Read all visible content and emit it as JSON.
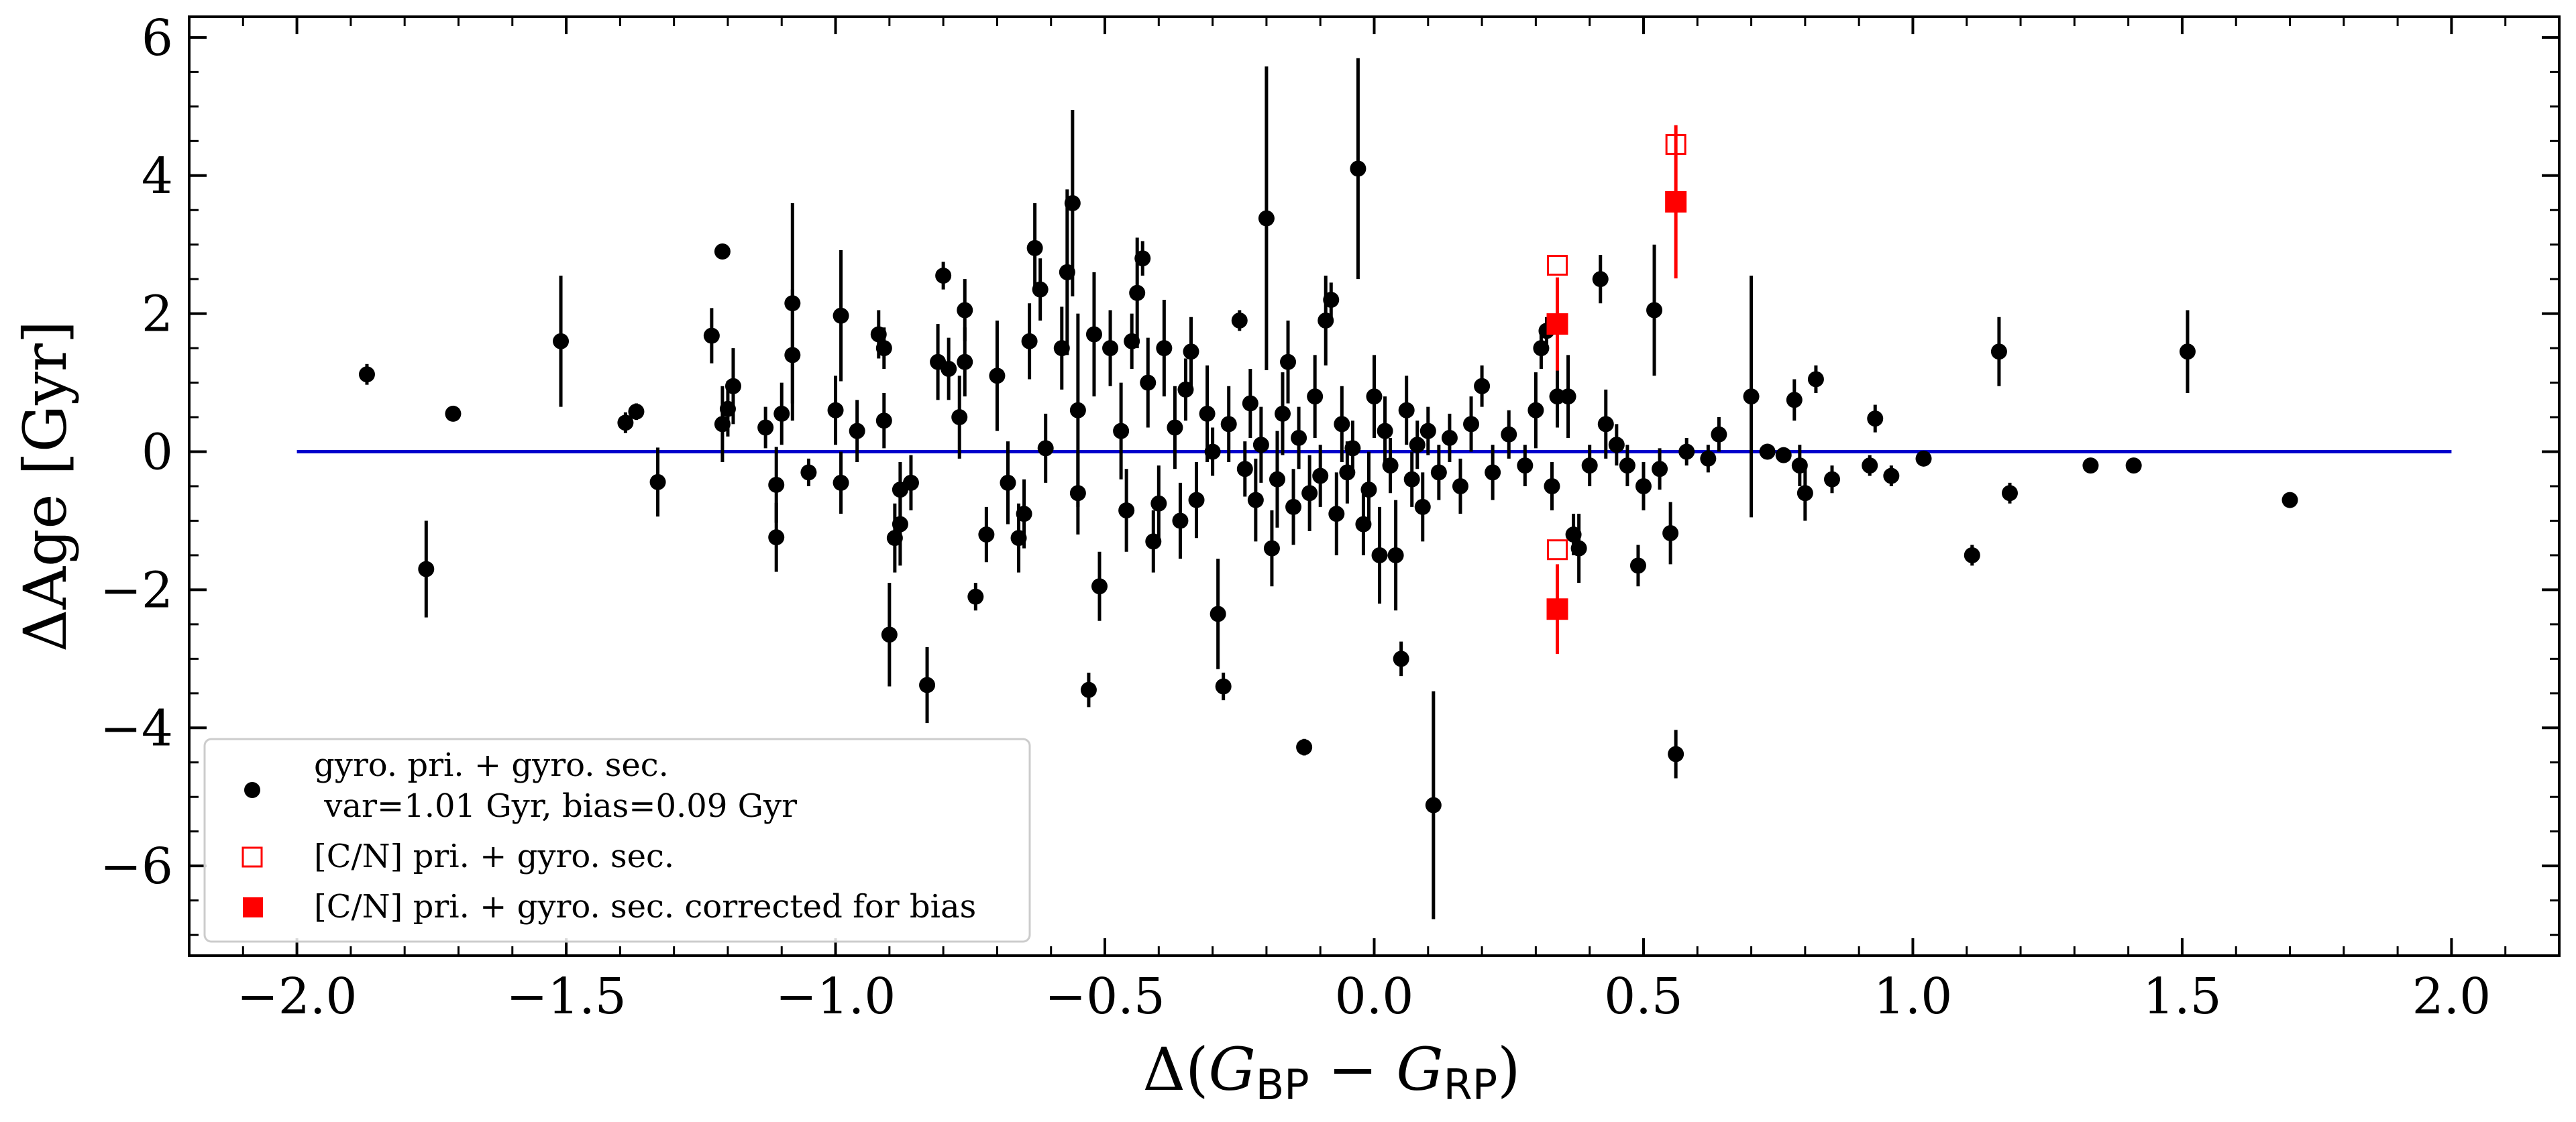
{
  "chart_data": {
    "type": "scatter",
    "ylabel": "ΔAge [Gyr]",
    "xlabel": {
      "prefix": "Δ(",
      "g": "G",
      "sub1": "BP",
      "minus": " − ",
      "sub2": "RP",
      "suffix": ")"
    },
    "xlim": [
      -2.2,
      2.2
    ],
    "ylim": [
      -7.3,
      6.3
    ],
    "xticks": [
      -2.0,
      -1.5,
      -1.0,
      -0.5,
      0.0,
      0.5,
      1.0,
      1.5,
      2.0
    ],
    "xtick_labels": [
      "−2.0",
      "−1.5",
      "−1.0",
      "−0.5",
      "0.0",
      "0.5",
      "1.0",
      "1.5",
      "2.0"
    ],
    "yticks": [
      -6,
      -4,
      -2,
      0,
      2,
      4,
      6
    ],
    "ytick_labels": [
      "−6",
      "−4",
      "−2",
      "0",
      "2",
      "4",
      "6"
    ],
    "grid": false,
    "legend_placement": "lower-left",
    "colors": {
      "gyro": "#000000",
      "cn": "#ff0000",
      "line": "#0000cc"
    },
    "reference_line": {
      "x": [
        -2.0,
        2.0
      ],
      "y": 0
    },
    "series": [
      {
        "name": "gyro. pri. + gyro. sec.",
        "name_line2": " var=1.01 Gyr, bias=0.09 Gyr",
        "marker": "circle",
        "points": [
          [
            -1.87,
            1.12,
            0.15
          ],
          [
            -1.76,
            -1.7,
            0.7
          ],
          [
            -1.71,
            0.55,
            0.1
          ],
          [
            -1.51,
            1.6,
            0.95
          ],
          [
            -1.39,
            0.42,
            0.15
          ],
          [
            -1.37,
            0.58,
            0.12
          ],
          [
            -1.33,
            -0.44,
            0.5
          ],
          [
            -1.23,
            1.68,
            0.4
          ],
          [
            -1.21,
            2.9,
            0.1
          ],
          [
            -1.21,
            0.4,
            0.55
          ],
          [
            -1.2,
            0.62,
            0.4
          ],
          [
            -1.19,
            0.95,
            0.55
          ],
          [
            -1.13,
            0.35,
            0.3
          ],
          [
            -1.11,
            -1.24,
            0.5
          ],
          [
            -1.11,
            -0.48,
            0.55
          ],
          [
            -1.1,
            0.55,
            0.45
          ],
          [
            -1.08,
            2.15,
            1.45
          ],
          [
            -1.08,
            1.4,
            0.95
          ],
          [
            -1.05,
            -0.3,
            0.2
          ],
          [
            -1.0,
            0.6,
            0.5
          ],
          [
            -0.99,
            -0.45,
            0.45
          ],
          [
            -0.99,
            1.97,
            0.95
          ],
          [
            -0.96,
            0.3,
            0.45
          ],
          [
            -0.92,
            1.7,
            0.35
          ],
          [
            -0.91,
            1.5,
            0.3
          ],
          [
            -0.91,
            0.45,
            0.4
          ],
          [
            -0.9,
            -2.65,
            0.75
          ],
          [
            -0.89,
            -1.25,
            0.5
          ],
          [
            -0.88,
            -1.05,
            0.6
          ],
          [
            -0.88,
            -0.55,
            0.4
          ],
          [
            -0.86,
            -0.45,
            0.4
          ],
          [
            -0.83,
            -3.38,
            0.55
          ],
          [
            -0.81,
            1.3,
            0.55
          ],
          [
            -0.8,
            2.55,
            0.2
          ],
          [
            -0.79,
            1.2,
            0.45
          ],
          [
            -0.77,
            0.5,
            0.6
          ],
          [
            -0.76,
            1.3,
            0.5
          ],
          [
            -0.76,
            2.05,
            0.45
          ],
          [
            -0.74,
            -2.1,
            0.2
          ],
          [
            -0.72,
            -1.2,
            0.4
          ],
          [
            -0.7,
            1.1,
            0.8
          ],
          [
            -0.68,
            -0.45,
            0.6
          ],
          [
            -0.66,
            -1.25,
            0.5
          ],
          [
            -0.65,
            -0.9,
            0.5
          ],
          [
            -0.64,
            1.6,
            0.55
          ],
          [
            -0.63,
            2.95,
            0.65
          ],
          [
            -0.62,
            2.35,
            0.45
          ],
          [
            -0.61,
            0.05,
            0.5
          ],
          [
            -0.58,
            1.5,
            0.6
          ],
          [
            -0.57,
            2.6,
            1.2
          ],
          [
            -0.56,
            3.6,
            1.35
          ],
          [
            -0.55,
            -0.6,
            0.6
          ],
          [
            -0.55,
            0.6,
            1.4
          ],
          [
            -0.53,
            -3.45,
            0.25
          ],
          [
            -0.52,
            1.7,
            0.9
          ],
          [
            -0.51,
            -1.95,
            0.5
          ],
          [
            -0.49,
            1.5,
            0.55
          ],
          [
            -0.47,
            0.3,
            0.7
          ],
          [
            -0.46,
            -0.85,
            0.6
          ],
          [
            -0.45,
            1.6,
            0.4
          ],
          [
            -0.44,
            2.3,
            0.8
          ],
          [
            -0.43,
            2.8,
            0.25
          ],
          [
            -0.42,
            1.0,
            0.65
          ],
          [
            -0.41,
            -1.3,
            0.45
          ],
          [
            -0.4,
            -0.75,
            0.55
          ],
          [
            -0.39,
            1.5,
            0.7
          ],
          [
            -0.37,
            0.35,
            0.6
          ],
          [
            -0.36,
            -1.0,
            0.55
          ],
          [
            -0.35,
            0.9,
            0.45
          ],
          [
            -0.34,
            1.45,
            0.5
          ],
          [
            -0.33,
            -0.7,
            0.55
          ],
          [
            -0.31,
            0.55,
            0.7
          ],
          [
            -0.3,
            0.0,
            0.35
          ],
          [
            -0.29,
            -2.35,
            0.8
          ],
          [
            -0.28,
            -3.4,
            0.2
          ],
          [
            -0.27,
            0.4,
            0.55
          ],
          [
            -0.25,
            1.9,
            0.15
          ],
          [
            -0.24,
            -0.25,
            0.4
          ],
          [
            -0.23,
            0.7,
            0.5
          ],
          [
            -0.22,
            -0.7,
            0.6
          ],
          [
            -0.21,
            0.1,
            0.55
          ],
          [
            -0.2,
            3.38,
            2.2
          ],
          [
            -0.19,
            -1.4,
            0.55
          ],
          [
            -0.18,
            -0.4,
            0.7
          ],
          [
            -0.17,
            0.55,
            0.6
          ],
          [
            -0.16,
            1.3,
            0.6
          ],
          [
            -0.15,
            -0.8,
            0.55
          ],
          [
            -0.14,
            0.2,
            0.45
          ],
          [
            -0.13,
            -4.28,
            0.12
          ],
          [
            -0.12,
            -0.6,
            0.55
          ],
          [
            -0.11,
            0.8,
            0.6
          ],
          [
            -0.1,
            -0.35,
            0.45
          ],
          [
            -0.09,
            1.9,
            0.65
          ],
          [
            -0.08,
            2.2,
            0.25
          ],
          [
            -0.07,
            -0.9,
            0.6
          ],
          [
            -0.06,
            0.4,
            0.55
          ],
          [
            -0.05,
            -0.3,
            0.45
          ],
          [
            -0.04,
            0.05,
            0.4
          ],
          [
            -0.03,
            4.1,
            1.6
          ],
          [
            -0.02,
            -1.05,
            0.45
          ],
          [
            -0.01,
            -0.55,
            0.55
          ],
          [
            0.0,
            0.8,
            0.6
          ],
          [
            0.01,
            -1.5,
            0.7
          ],
          [
            0.02,
            0.3,
            0.5
          ],
          [
            0.03,
            -0.2,
            0.4
          ],
          [
            0.04,
            -1.5,
            0.8
          ],
          [
            0.05,
            -3.0,
            0.25
          ],
          [
            0.06,
            0.6,
            0.5
          ],
          [
            0.07,
            -0.4,
            0.4
          ],
          [
            0.08,
            0.1,
            0.35
          ],
          [
            0.09,
            -0.8,
            0.5
          ],
          [
            0.1,
            0.3,
            0.35
          ],
          [
            0.11,
            -5.12,
            1.65
          ],
          [
            0.12,
            -0.3,
            0.4
          ],
          [
            0.14,
            0.2,
            0.35
          ],
          [
            0.16,
            -0.5,
            0.4
          ],
          [
            0.18,
            0.4,
            0.4
          ],
          [
            0.2,
            0.95,
            0.3
          ],
          [
            0.22,
            -0.3,
            0.4
          ],
          [
            0.25,
            0.25,
            0.35
          ],
          [
            0.28,
            -0.2,
            0.3
          ],
          [
            0.3,
            0.6,
            0.55
          ],
          [
            0.31,
            1.5,
            0.3
          ],
          [
            0.32,
            1.75,
            0.2
          ],
          [
            0.33,
            -0.5,
            0.35
          ],
          [
            0.34,
            0.8,
            0.45
          ],
          [
            0.36,
            0.8,
            0.6
          ],
          [
            0.37,
            -1.2,
            0.3
          ],
          [
            0.38,
            -1.4,
            0.5
          ],
          [
            0.4,
            -0.2,
            0.3
          ],
          [
            0.42,
            2.5,
            0.35
          ],
          [
            0.43,
            0.4,
            0.5
          ],
          [
            0.45,
            0.1,
            0.3
          ],
          [
            0.47,
            -0.2,
            0.3
          ],
          [
            0.49,
            -1.65,
            0.3
          ],
          [
            0.5,
            -0.5,
            0.35
          ],
          [
            0.52,
            2.05,
            0.95
          ],
          [
            0.53,
            -0.25,
            0.3
          ],
          [
            0.55,
            -1.18,
            0.45
          ],
          [
            0.56,
            -4.38,
            0.35
          ],
          [
            0.58,
            0.0,
            0.2
          ],
          [
            0.62,
            -0.1,
            0.2
          ],
          [
            0.64,
            0.25,
            0.25
          ],
          [
            0.7,
            0.8,
            1.75
          ],
          [
            0.73,
            0.0,
            0.1
          ],
          [
            0.76,
            -0.05,
            0.1
          ],
          [
            0.78,
            0.75,
            0.3
          ],
          [
            0.79,
            -0.2,
            0.3
          ],
          [
            0.8,
            -0.6,
            0.4
          ],
          [
            0.82,
            1.05,
            0.2
          ],
          [
            0.85,
            -0.4,
            0.2
          ],
          [
            0.92,
            -0.2,
            0.15
          ],
          [
            0.93,
            0.48,
            0.2
          ],
          [
            0.96,
            -0.35,
            0.15
          ],
          [
            1.02,
            -0.1,
            0.1
          ],
          [
            1.11,
            -1.5,
            0.15
          ],
          [
            1.16,
            1.45,
            0.5
          ],
          [
            1.18,
            -0.6,
            0.15
          ],
          [
            1.33,
            -0.2,
            0.08
          ],
          [
            1.41,
            -0.2,
            0.08
          ],
          [
            1.51,
            1.45,
            0.6
          ],
          [
            1.7,
            -0.7,
            0.1
          ]
        ]
      },
      {
        "name": "[C/N] pri. + gyro. sec.",
        "marker": "open-square",
        "points": [
          [
            0.34,
            2.7,
            0.0
          ],
          [
            0.34,
            -1.42,
            0.0
          ],
          [
            0.56,
            4.45,
            0.0
          ]
        ]
      },
      {
        "name": "[C/N] pri. + gyro. sec. corrected for bias",
        "marker": "filled-square",
        "points": [
          [
            0.34,
            1.85,
            1.35
          ],
          [
            0.34,
            -2.28,
            1.3
          ],
          [
            0.56,
            3.62,
            2.22
          ]
        ]
      }
    ]
  }
}
